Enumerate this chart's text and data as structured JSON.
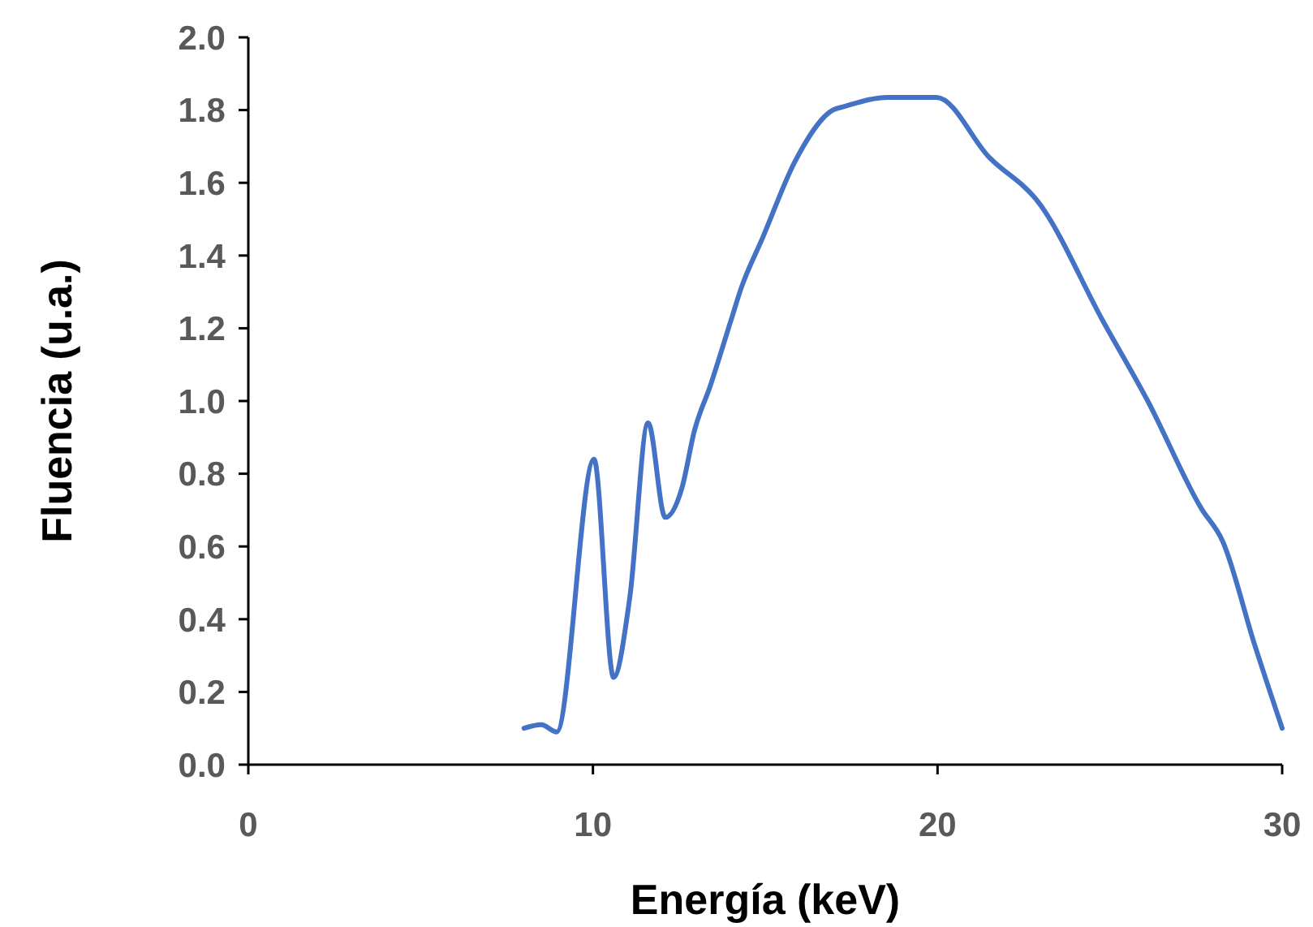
{
  "chart_data": {
    "type": "line",
    "xlabel": "Energía (keV)",
    "ylabel": "Fluencia (u.a.)",
    "xlim": [
      0,
      30
    ],
    "xticks": [
      0,
      10,
      20,
      30
    ],
    "ylim": [
      0,
      2
    ],
    "yticks": [
      {
        "value": 0,
        "label": "0.0"
      },
      {
        "value": 0.2,
        "label": "0.2"
      },
      {
        "value": 0.4,
        "label": "0.4"
      },
      {
        "value": 0.6,
        "label": "0.6"
      },
      {
        "value": 0.8,
        "label": "0.8"
      },
      {
        "value": 1,
        "label": "1.0"
      },
      {
        "value": 1.2,
        "label": "1.2"
      },
      {
        "value": 1.4,
        "label": "1.4"
      },
      {
        "value": 1.6,
        "label": "1.6"
      },
      {
        "value": 1.8,
        "label": "1.8"
      },
      {
        "value": 2,
        "label": "2.0"
      }
    ],
    "grid": false,
    "marker": "none",
    "line_style": "solid",
    "x": [
      8.0,
      8.5,
      8.95,
      10.03,
      10.6,
      11.07,
      11.6,
      12.1,
      12.58,
      12.95,
      13.4,
      14.0,
      14.3,
      14.93,
      15.87,
      16.96,
      17.3,
      18.55,
      19.97,
      21.5,
      22.94,
      24.8,
      26.1,
      27.65,
      28.27,
      29.2,
      30.0
    ],
    "series": [
      {
        "color": "#4472c4",
        "values": [
          0.1,
          0.11,
          0.09,
          0.84,
          0.24,
          0.46,
          0.94,
          0.68,
          0.76,
          0.92,
          1.04,
          1.22,
          1.31,
          1.45,
          1.66,
          1.8,
          1.81,
          1.835,
          1.835,
          1.67,
          1.545,
          1.22,
          1.0,
          0.705,
          0.615,
          0.33,
          0.1
        ]
      }
    ]
  }
}
